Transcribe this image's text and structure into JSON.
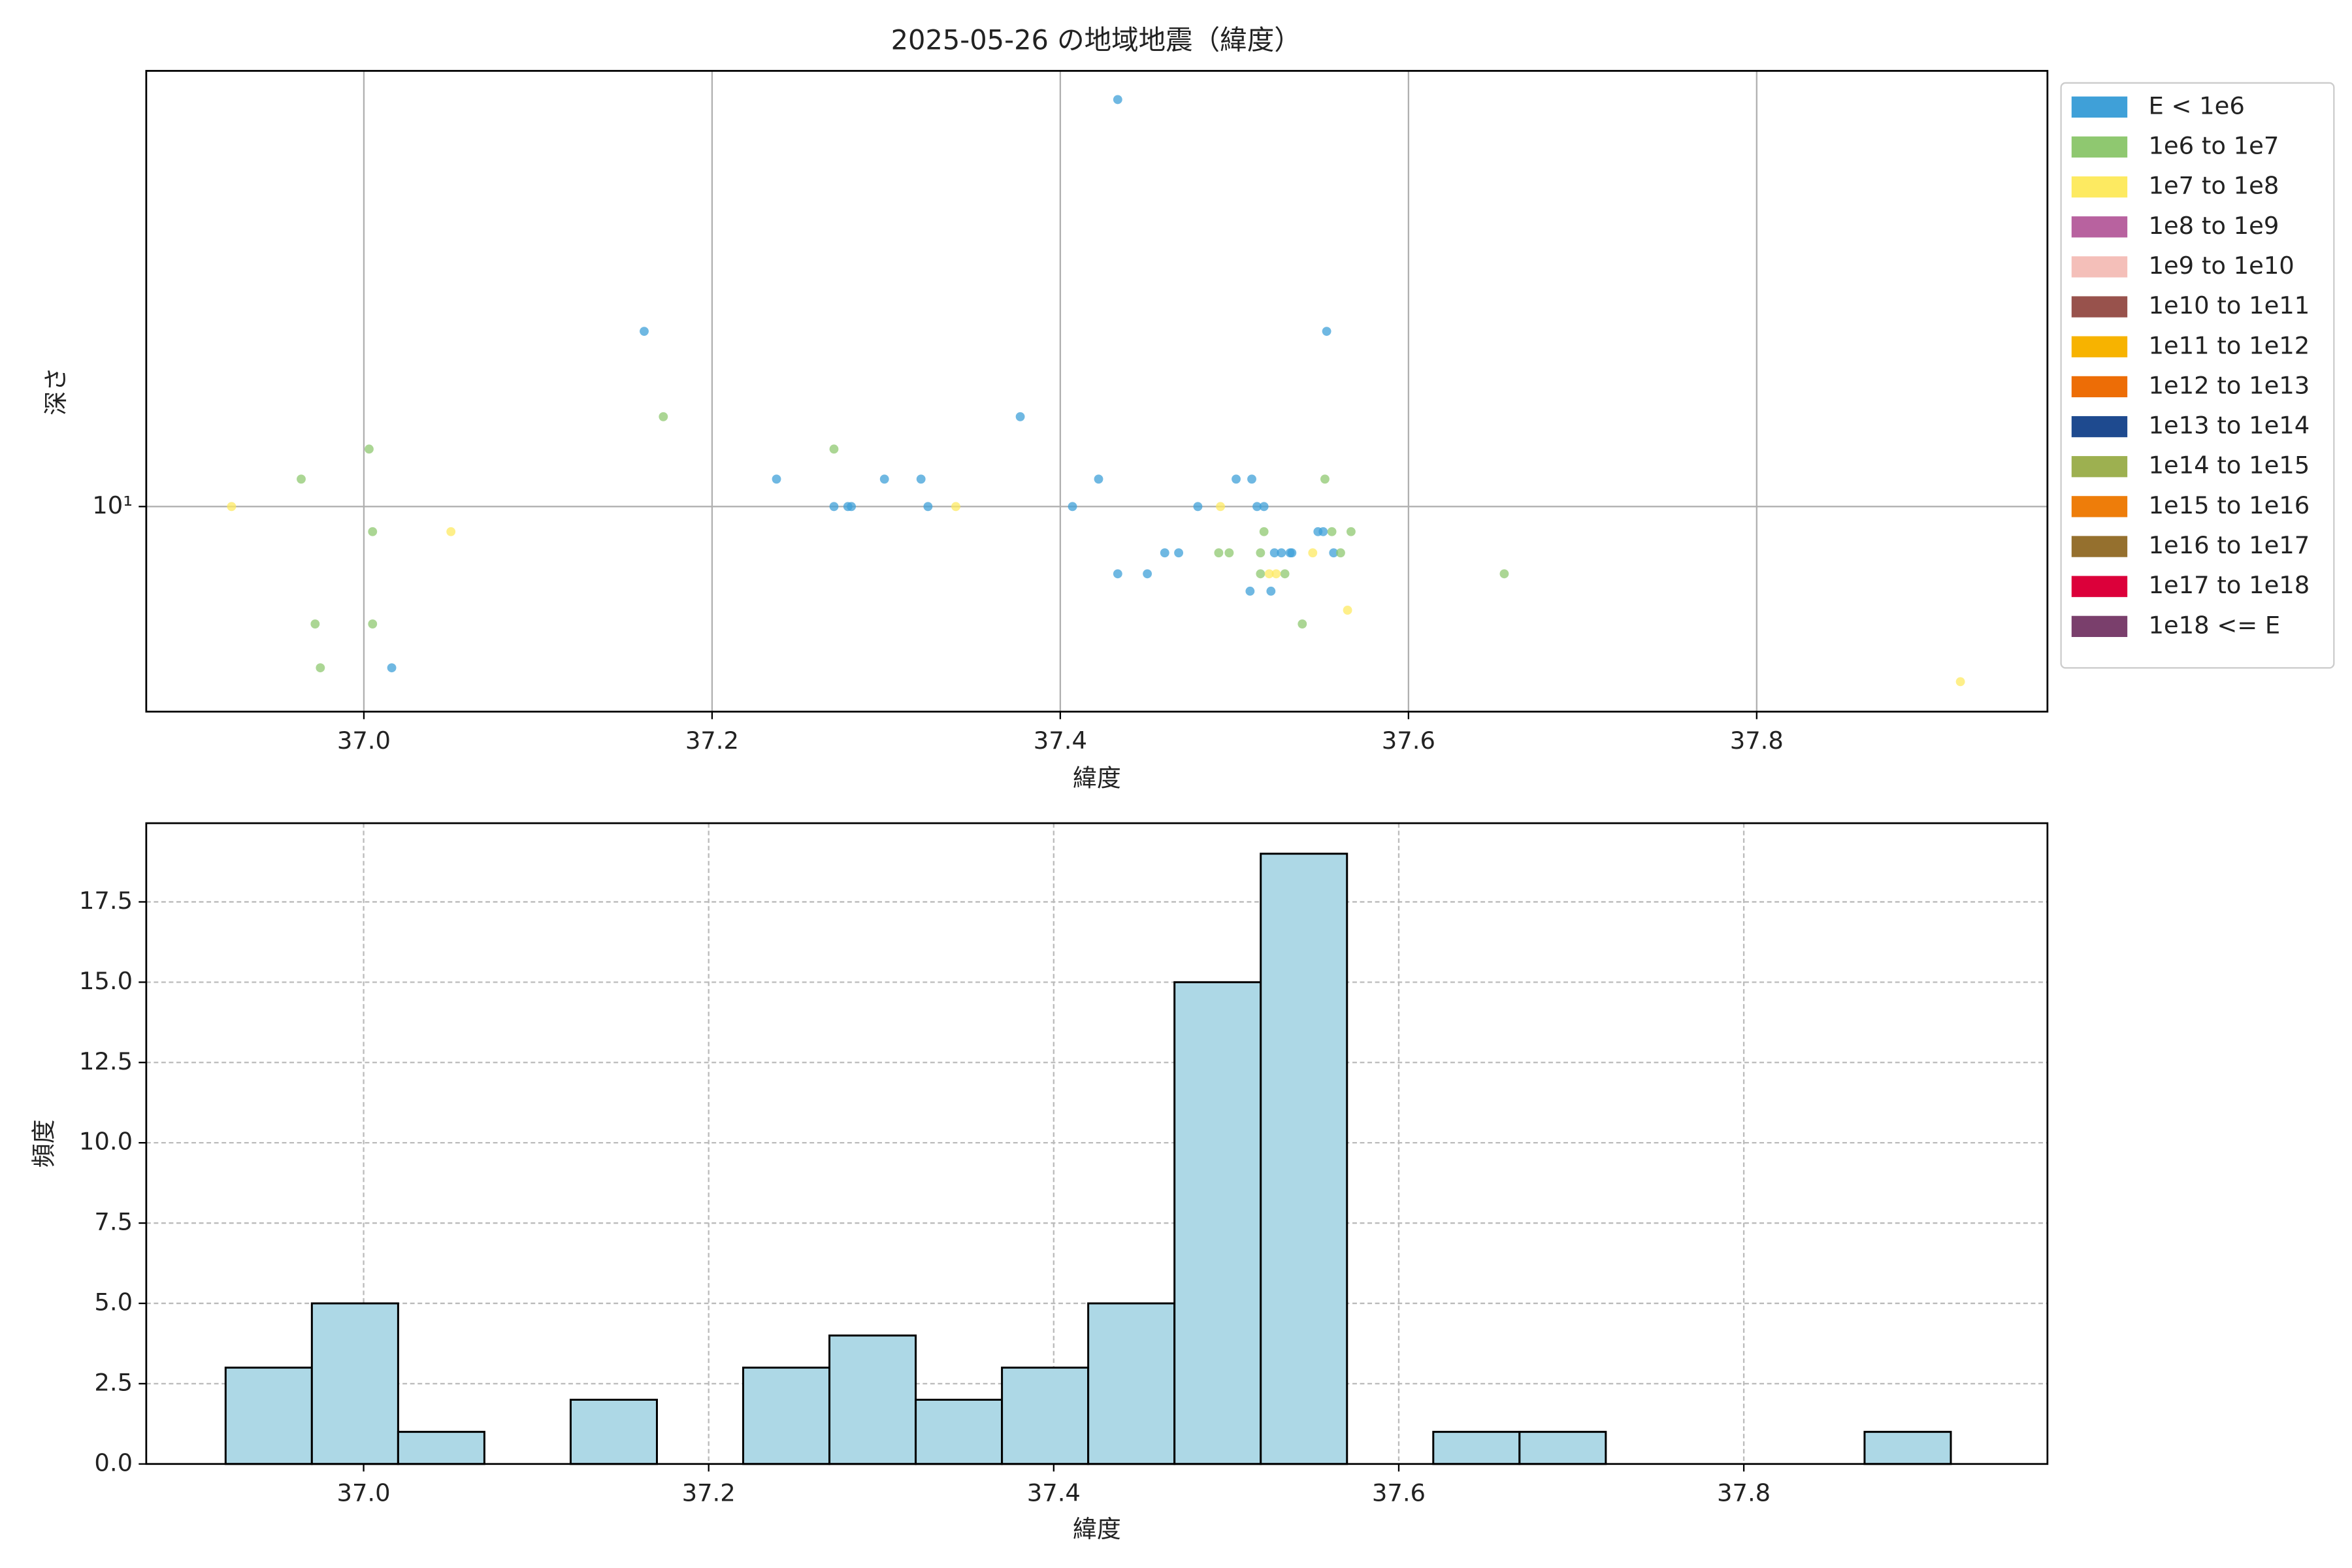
{
  "chart_data": [
    {
      "type": "scatter",
      "title": "2025-05-26 の地域地震（緯度）",
      "x_label": "緯度",
      "y_label": "深さ",
      "log_y": true,
      "grid": "solid",
      "legend": "outside-right",
      "xlim": [
        36.875,
        37.967
      ],
      "xticks": [
        {
          "value": 37.0,
          "label": "37.0"
        },
        37.2,
        37.4,
        37.6,
        37.8
      ],
      "ylim": [
        3.52,
        91.9
      ],
      "yticks": [
        {
          "value": 10,
          "label": "10¹"
        }
      ],
      "series": [
        {
          "name": "E < 1e6",
          "color": "#3fa0d8",
          "x": [
            37.433,
            37.161,
            37.553,
            37.377,
            37.237,
            37.299,
            37.32,
            37.422,
            37.501,
            37.51,
            37.27,
            37.278,
            37.28,
            37.324,
            37.407,
            37.479,
            37.513,
            37.517,
            37.46,
            37.468,
            37.523,
            37.527,
            37.532,
            37.533,
            37.433,
            37.45,
            37.509,
            37.521,
            37.016,
            37.548,
            37.551,
            37.557
          ],
          "values": [
            79.4,
            24.4,
            24.4,
            15.8,
            11.5,
            11.5,
            11.5,
            11.5,
            11.5,
            11.5,
            10,
            10,
            10,
            10,
            10,
            10,
            10,
            10,
            7.9,
            7.9,
            7.9,
            7.9,
            7.9,
            7.9,
            7.1,
            7.1,
            6.5,
            6.5,
            4.4,
            8.8,
            8.8,
            7.9
          ]
        },
        {
          "name": "1e6 to 1e7",
          "color": "#8fc870",
          "x": [
            37.003,
            36.964,
            37.005,
            36.972,
            37.005,
            36.975,
            37.172,
            37.27,
            37.552,
            37.517,
            37.556,
            37.567,
            37.491,
            37.497,
            37.515,
            37.561,
            37.515,
            37.529,
            37.655,
            37.539
          ],
          "values": [
            13.4,
            11.5,
            8.8,
            5.5,
            5.5,
            4.4,
            15.8,
            13.4,
            11.5,
            8.8,
            8.8,
            8.8,
            7.9,
            7.9,
            7.9,
            7.9,
            7.1,
            7.1,
            7.1,
            5.5
          ]
        },
        {
          "name": "1e7 to 1e8",
          "color": "#fdea61",
          "x": [
            36.924,
            37.05,
            37.34,
            37.492,
            37.545,
            37.52,
            37.524,
            37.565,
            37.917
          ],
          "values": [
            10,
            8.8,
            10,
            10,
            7.9,
            7.1,
            7.1,
            5.9,
            4.1
          ]
        },
        {
          "name": "1e8 to 1e9",
          "color": "#b8629f",
          "x": [],
          "values": []
        },
        {
          "name": "1e9 to 1e10",
          "color": "#f4bfb9",
          "x": [],
          "values": []
        },
        {
          "name": "1e10 to 1e11",
          "color": "#98524c",
          "x": [],
          "values": []
        },
        {
          "name": "1e11 to 1e12",
          "color": "#f7b300",
          "x": [],
          "values": []
        },
        {
          "name": "1e12 to 1e13",
          "color": "#ed6d06",
          "x": [],
          "values": []
        },
        {
          "name": "1e13 to 1e14",
          "color": "#1e4a8f",
          "x": [],
          "values": []
        },
        {
          "name": "1e14 to 1e15",
          "color": "#9db050",
          "x": [],
          "values": []
        },
        {
          "name": "1e15 to 1e16",
          "color": "#ee7d0a",
          "x": [],
          "values": []
        },
        {
          "name": "1e16 to 1e17",
          "color": "#95702e",
          "x": [],
          "values": []
        },
        {
          "name": "1e17 to 1e18",
          "color": "#dc003a",
          "x": [],
          "values": []
        },
        {
          "name": "1e18 <= E",
          "color": "#7a3f6c",
          "x": [],
          "values": []
        }
      ]
    },
    {
      "type": "histogram",
      "x_label": "緯度",
      "y_label": "頻度",
      "grid": "dashed",
      "color": "#add8e6",
      "edge_color": "#000000",
      "xlim": [
        36.874,
        37.976
      ],
      "xticks": [
        {
          "value": 37.0,
          "label": "37.0"
        },
        37.2,
        37.4,
        37.6,
        37.8
      ],
      "ylim": [
        0,
        19.95
      ],
      "yticks": [
        {
          "value": 0,
          "label": "0.0"
        },
        2.5,
        {
          "value": 5,
          "label": "5.0"
        },
        7.5,
        {
          "value": 10,
          "label": "10.0"
        },
        12.5,
        {
          "value": 15,
          "label": "15.0"
        },
        17.5
      ],
      "bins": [
        36.92,
        36.97,
        37.02,
        37.07,
        37.12,
        37.17,
        37.22,
        37.27,
        37.32,
        37.37,
        37.42,
        37.47,
        37.52,
        37.57,
        37.62,
        37.67,
        37.72,
        37.77,
        37.82,
        37.87,
        37.92
      ],
      "values": [
        3,
        5,
        1,
        0,
        2,
        0,
        3,
        4,
        2,
        3,
        5,
        15,
        19,
        0,
        1,
        1,
        0,
        0,
        0,
        1
      ]
    }
  ]
}
